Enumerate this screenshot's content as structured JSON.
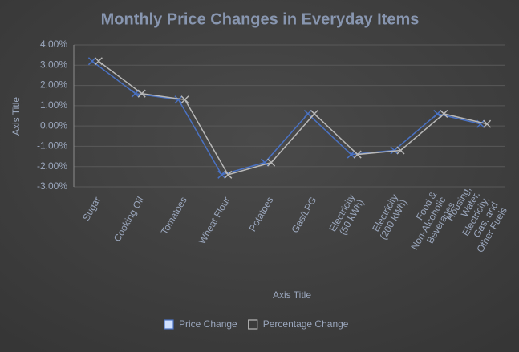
{
  "chart_data": {
    "type": "line",
    "title": "Monthly Price Changes in Everyday Items",
    "x_label": "Axis Title",
    "y_label": "Axis Title",
    "categories": [
      "Sugar",
      "Cooking Oil",
      "Tomatoes",
      "Wheat Flour",
      "Potatoes",
      "Gas/LPG",
      "Electricity (50 kWh)",
      "Electricity (200 kWh)",
      "Food & Non-Alcoholic Beverages",
      "Housing, Water, Electricity, Gas, and Other Fuels"
    ],
    "series": [
      {
        "name": "Price Change",
        "color": "#4a72c4",
        "values": [
          3.2,
          1.6,
          1.3,
          -2.4,
          -1.8,
          0.6,
          -1.4,
          -1.2,
          0.6,
          0.1
        ]
      },
      {
        "name": "Percentage Change",
        "color": "#b8b8b8",
        "values": [
          3.2,
          1.6,
          1.3,
          -2.4,
          -1.8,
          0.6,
          -1.4,
          -1.2,
          0.6,
          0.1
        ]
      }
    ],
    "ylim": [
      -3,
      4
    ],
    "yticks": [
      {
        "value": -3,
        "label": "-3.00%"
      },
      {
        "value": -2,
        "label": "-2.00%"
      },
      {
        "value": -1,
        "label": "-1.00%"
      },
      {
        "value": 0,
        "label": "0.00%"
      },
      {
        "value": 1,
        "label": "1.00%"
      },
      {
        "value": 2,
        "label": "2.00%"
      },
      {
        "value": 3,
        "label": "3.00%"
      },
      {
        "value": 4,
        "label": "4.00%"
      }
    ],
    "grid": true,
    "legend": "bottom"
  }
}
